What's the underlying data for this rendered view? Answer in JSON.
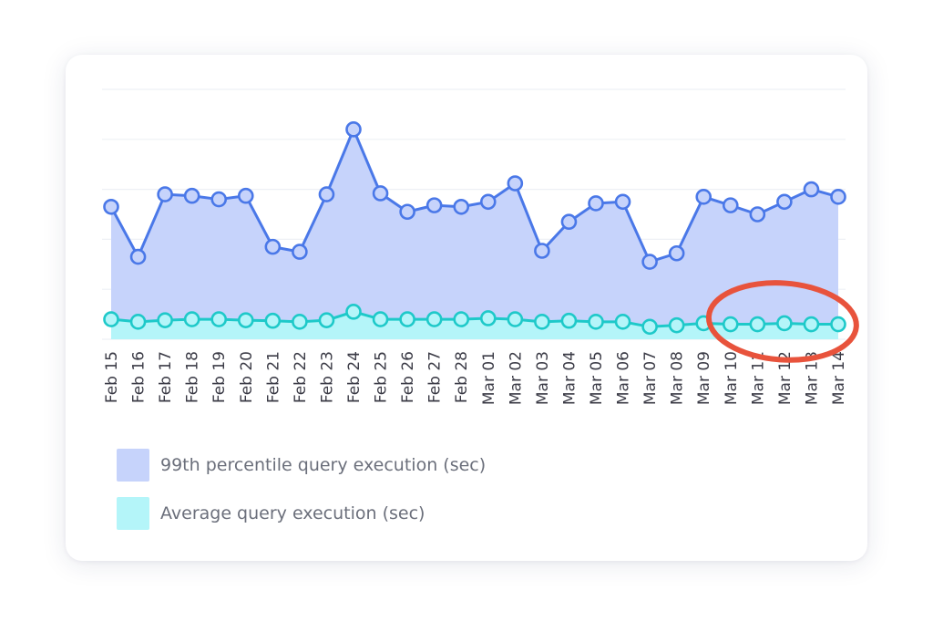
{
  "chart_data": {
    "type": "area",
    "title": "",
    "xlabel": "",
    "ylabel": "",
    "categories": [
      "Feb 15",
      "Feb 16",
      "Feb 17",
      "Feb 18",
      "Feb 19",
      "Feb 20",
      "Feb 21",
      "Feb 22",
      "Feb 23",
      "Feb 24",
      "Feb 25",
      "Feb 26",
      "Feb 27",
      "Feb 28",
      "Mar 01",
      "Mar 02",
      "Mar 03",
      "Mar 04",
      "Mar 05",
      "Mar 06",
      "Mar 07",
      "Mar 08",
      "Mar 09",
      "Mar 10",
      "Mar 11",
      "Mar 12",
      "Mar 13",
      "Mar 14"
    ],
    "ylim": [
      0,
      5
    ],
    "grid": true,
    "series": [
      {
        "name": "99th percentile query execution (sec)",
        "color": "#4a78e8",
        "fill": "#c6d3fb",
        "values": [
          2.65,
          1.65,
          2.9,
          2.87,
          2.8,
          2.87,
          1.85,
          1.75,
          2.9,
          4.2,
          2.92,
          2.55,
          2.68,
          2.65,
          2.75,
          3.12,
          1.77,
          2.35,
          2.72,
          2.75,
          1.55,
          1.72,
          2.85,
          2.68,
          2.5,
          2.75,
          3.0,
          2.85
        ]
      },
      {
        "name": "Average query execution (sec)",
        "color": "#1ec9c9",
        "fill": "#b4f5f9",
        "values": [
          0.4,
          0.35,
          0.38,
          0.4,
          0.4,
          0.38,
          0.37,
          0.35,
          0.38,
          0.55,
          0.4,
          0.4,
          0.4,
          0.4,
          0.42,
          0.4,
          0.35,
          0.37,
          0.35,
          0.35,
          0.25,
          0.28,
          0.32,
          0.3,
          0.3,
          0.32,
          0.3,
          0.3
        ]
      }
    ],
    "annotations": [
      {
        "type": "highlight-ellipse",
        "color": "#e8533c",
        "range": [
          "Mar 10",
          "Mar 14"
        ]
      }
    ]
  },
  "legend": {
    "items": [
      {
        "label": "99th percentile query execution (sec)",
        "swatch": "#c6d3fb"
      },
      {
        "label": "Average query execution (sec)",
        "swatch": "#b4f5f9"
      }
    ]
  }
}
